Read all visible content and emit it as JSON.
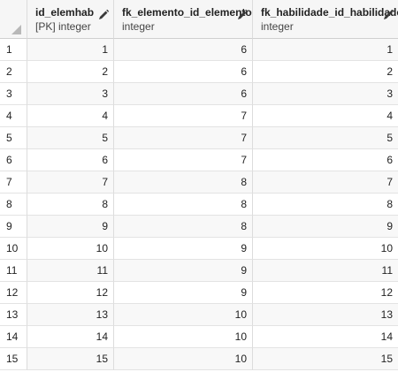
{
  "columns": [
    {
      "name": "id_elemhab",
      "type": "[PK] integer"
    },
    {
      "name": "fk_elemento_id_elemento",
      "type": "integer"
    },
    {
      "name": "fk_habilidade_id_habilidade",
      "type": "integer"
    }
  ],
  "rows": [
    {
      "n": "1",
      "id": "1",
      "fk_elemento": "6",
      "fk_habilidade": "1"
    },
    {
      "n": "2",
      "id": "2",
      "fk_elemento": "6",
      "fk_habilidade": "2"
    },
    {
      "n": "3",
      "id": "3",
      "fk_elemento": "6",
      "fk_habilidade": "3"
    },
    {
      "n": "4",
      "id": "4",
      "fk_elemento": "7",
      "fk_habilidade": "4"
    },
    {
      "n": "5",
      "id": "5",
      "fk_elemento": "7",
      "fk_habilidade": "5"
    },
    {
      "n": "6",
      "id": "6",
      "fk_elemento": "7",
      "fk_habilidade": "6"
    },
    {
      "n": "7",
      "id": "7",
      "fk_elemento": "8",
      "fk_habilidade": "7"
    },
    {
      "n": "8",
      "id": "8",
      "fk_elemento": "8",
      "fk_habilidade": "8"
    },
    {
      "n": "9",
      "id": "9",
      "fk_elemento": "8",
      "fk_habilidade": "9"
    },
    {
      "n": "10",
      "id": "10",
      "fk_elemento": "9",
      "fk_habilidade": "10"
    },
    {
      "n": "11",
      "id": "11",
      "fk_elemento": "9",
      "fk_habilidade": "11"
    },
    {
      "n": "12",
      "id": "12",
      "fk_elemento": "9",
      "fk_habilidade": "12"
    },
    {
      "n": "13",
      "id": "13",
      "fk_elemento": "10",
      "fk_habilidade": "13"
    },
    {
      "n": "14",
      "id": "14",
      "fk_elemento": "10",
      "fk_habilidade": "14"
    },
    {
      "n": "15",
      "id": "15",
      "fk_elemento": "10",
      "fk_habilidade": "15"
    }
  ],
  "icons": {
    "edit_column": "pencil-icon",
    "select_all": "select-all-triangle-icon"
  }
}
